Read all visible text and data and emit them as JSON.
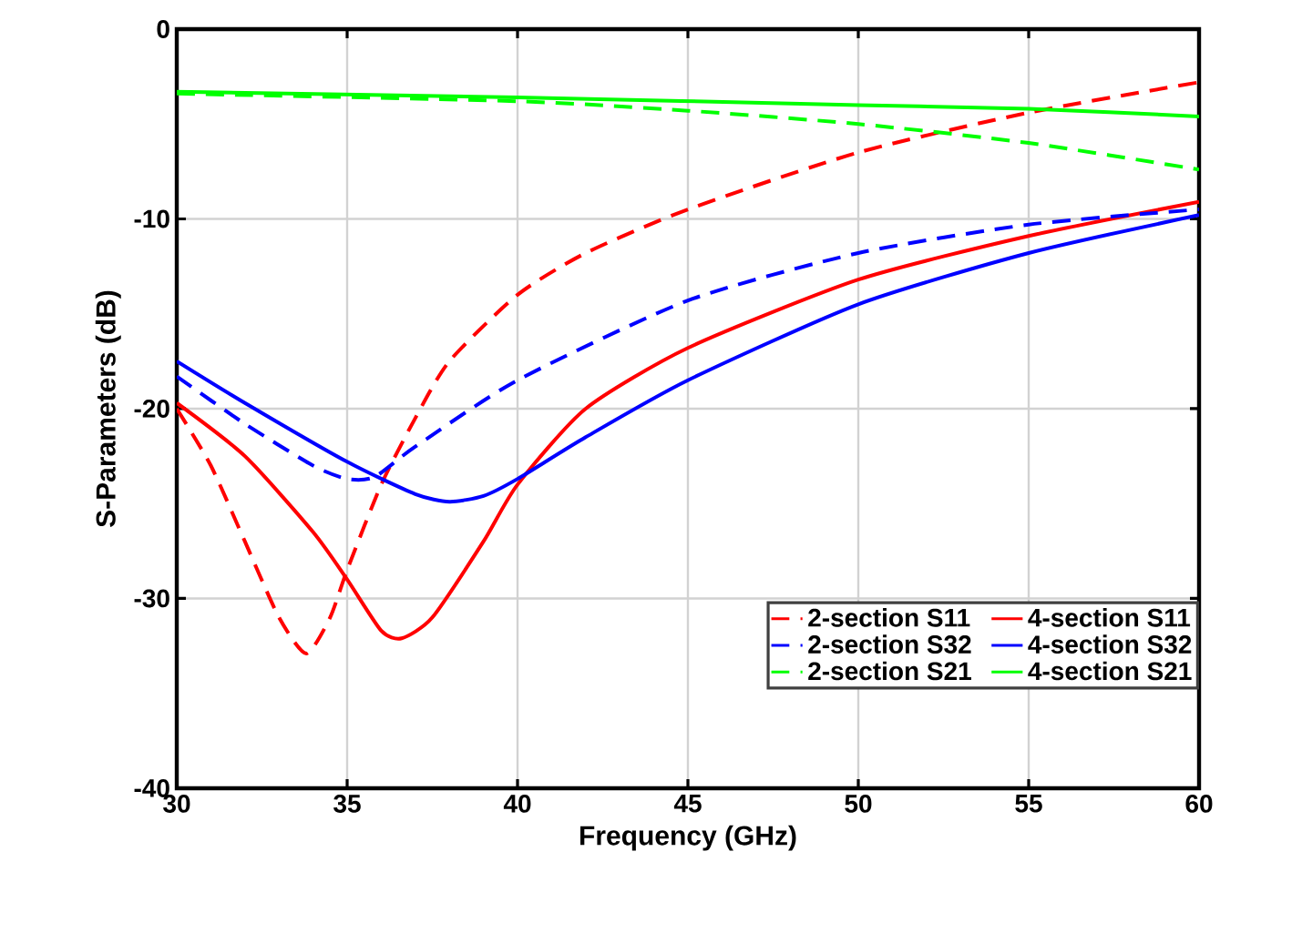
{
  "chart_data": {
    "type": "line",
    "xlabel": "Frequency (GHz)",
    "ylabel": "S-Parameters (dB)",
    "xlim": [
      30,
      60
    ],
    "ylim": [
      -40,
      0
    ],
    "xticks": [
      30,
      35,
      40,
      45,
      50,
      55,
      60
    ],
    "yticks": [
      -40,
      -30,
      -20,
      -10,
      0
    ],
    "grid": true,
    "legend": "bottom right",
    "marker": "none",
    "series": [
      {
        "name": "2-section S11",
        "color": "#ff0000",
        "line_style": "dashed",
        "x": [
          30,
          31,
          32,
          33,
          33.8,
          34.5,
          35,
          36,
          37,
          38,
          40,
          42,
          45,
          50,
          55,
          60
        ],
        "values": [
          -20,
          -23,
          -27,
          -31,
          -32.9,
          -31,
          -28.5,
          -24,
          -20.5,
          -17.5,
          -14,
          -11.8,
          -9.5,
          -6.5,
          -4.4,
          -2.8
        ]
      },
      {
        "name": "4-section S11",
        "color": "#ff0000",
        "line_style": "solid",
        "x": [
          30,
          32,
          34,
          35,
          36,
          36.6,
          37.5,
          39,
          40,
          42,
          45,
          50,
          55,
          60
        ],
        "values": [
          -19.7,
          -22.5,
          -26.5,
          -29,
          -31.7,
          -32.1,
          -31,
          -27,
          -24,
          -20,
          -16.8,
          -13.2,
          -10.9,
          -9.1
        ]
      },
      {
        "name": "2-section S32",
        "color": "#0000ff",
        "line_style": "dashed",
        "x": [
          30,
          32,
          34,
          35,
          35.8,
          37,
          40,
          45,
          50,
          55,
          60
        ],
        "values": [
          -18.3,
          -20.8,
          -23,
          -23.7,
          -23.6,
          -22,
          -18.5,
          -14.3,
          -11.8,
          -10.3,
          -9.5
        ]
      },
      {
        "name": "4-section S32",
        "color": "#0000ff",
        "line_style": "solid",
        "x": [
          30,
          32,
          35,
          37,
          38,
          39,
          40,
          42,
          45,
          50,
          55,
          60
        ],
        "values": [
          -17.5,
          -19.7,
          -22.8,
          -24.5,
          -24.9,
          -24.6,
          -23.7,
          -21.5,
          -18.5,
          -14.5,
          -11.8,
          -9.8
        ]
      },
      {
        "name": "2-section S21",
        "color": "#00ff00",
        "line_style": "dashed",
        "x": [
          30,
          40,
          45,
          50,
          55,
          60
        ],
        "values": [
          -3.4,
          -3.8,
          -4.3,
          -5,
          -6,
          -7.4
        ]
      },
      {
        "name": "4-section S21",
        "color": "#00ff00",
        "line_style": "solid",
        "x": [
          30,
          40,
          50,
          55,
          60
        ],
        "values": [
          -3.3,
          -3.6,
          -4,
          -4.2,
          -4.6
        ]
      }
    ]
  }
}
